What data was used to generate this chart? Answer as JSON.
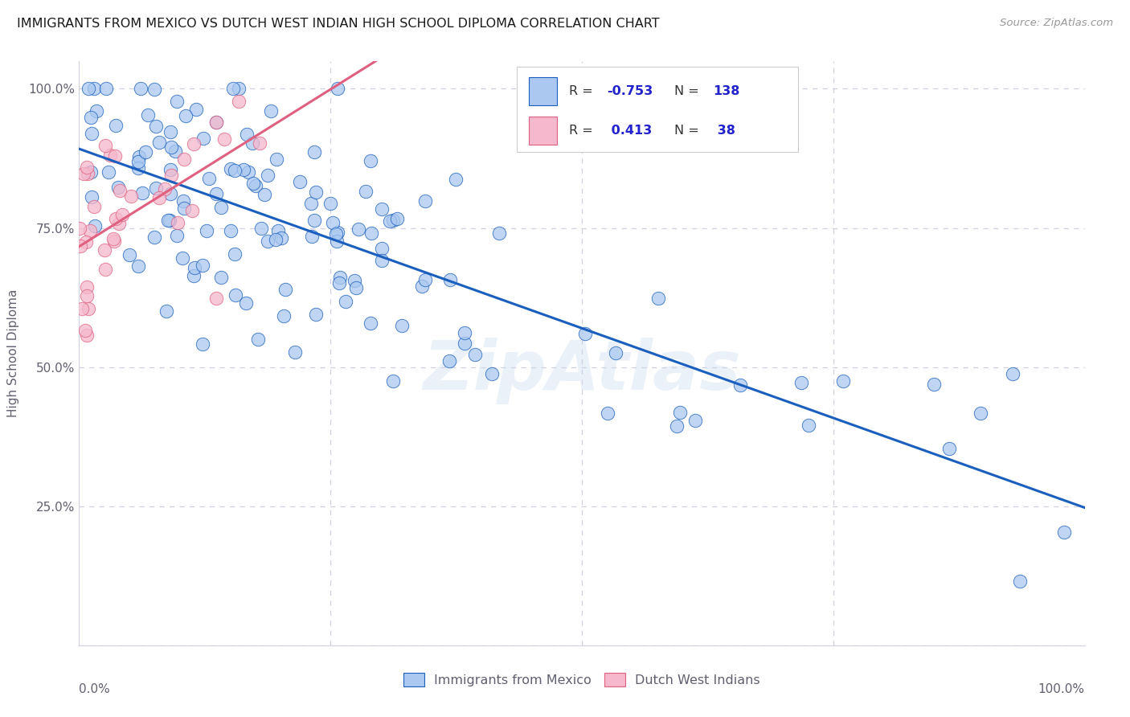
{
  "title": "IMMIGRANTS FROM MEXICO VS DUTCH WEST INDIAN HIGH SCHOOL DIPLOMA CORRELATION CHART",
  "source": "Source: ZipAtlas.com",
  "ylabel": "High School Diploma",
  "legend_labels": [
    "Immigrants from Mexico",
    "Dutch West Indians"
  ],
  "R_mexico": -0.753,
  "N_mexico": 138,
  "R_dutch": 0.413,
  "N_dutch": 38,
  "color_mexico": "#aac8f0",
  "color_dutch": "#f5b8cc",
  "line_color_mexico": "#1a5fbe",
  "line_color_dutch": "#e06080",
  "watermark": "ZipAtlas",
  "background_color": "#ffffff",
  "title_fontsize": 11.5,
  "axis_label_color": "#606070",
  "legend_r_color": "#2222cc",
  "legend_n_color": "#2222cc",
  "grid_color": "#d0d0e0",
  "seed": 7
}
